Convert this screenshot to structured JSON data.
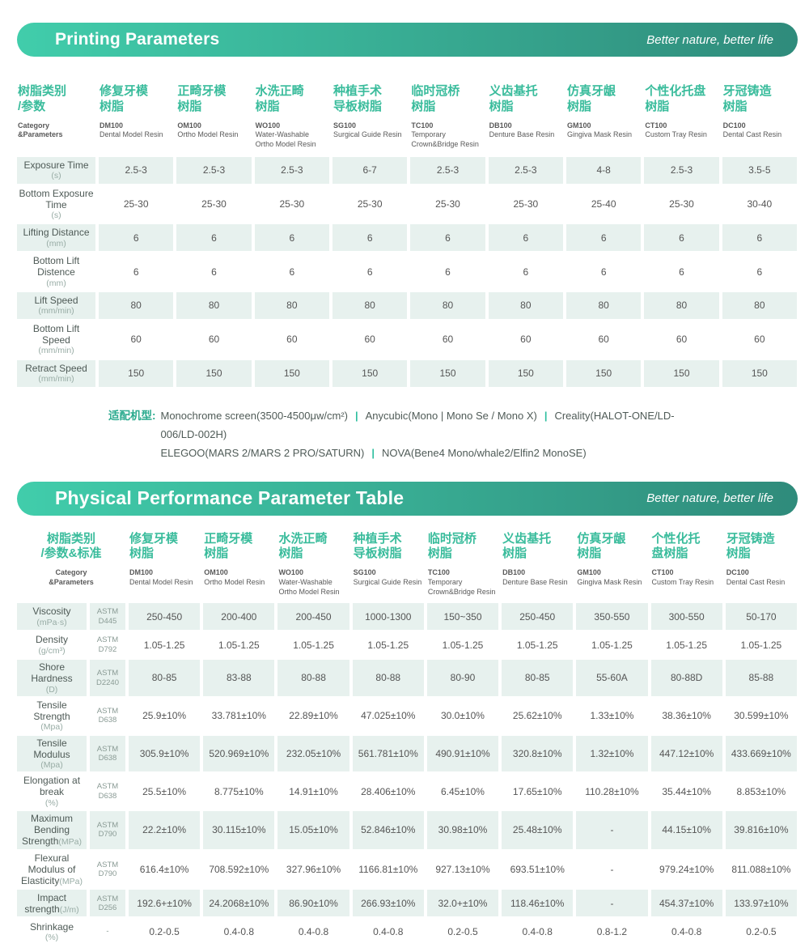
{
  "theme": {
    "accent_light": "#41cdab",
    "accent_dark": "#2f8b7b",
    "header_text": "#3abc9c",
    "shade_bg": "#e7f1ee"
  },
  "section1": {
    "title": "Printing Parameters",
    "tagline": "Better nature, better life",
    "table": {
      "category": {
        "zh": "树脂类别\n/参数",
        "en": "Category\n&Parameters"
      },
      "columns": [
        {
          "zh": "修复牙模\n树脂",
          "code": "DM100",
          "name": "Dental Model Resin"
        },
        {
          "zh": "正畸牙模\n树脂",
          "code": "OM100",
          "name": "Ortho Model Resin"
        },
        {
          "zh": "水洗正畸\n树脂",
          "code": "WO100",
          "name": "Water-Washable Ortho Model Resin"
        },
        {
          "zh": "种植手术\n导板树脂",
          "code": "SG100",
          "name": "Surgical Guide Resin"
        },
        {
          "zh": "临时冠桥\n树脂",
          "code": "TC100",
          "name": "Temporary Crown&Bridge Resin"
        },
        {
          "zh": "义齿基托\n树脂",
          "code": "DB100",
          "name": "Denture Base Resin"
        },
        {
          "zh": "仿真牙龈\n树脂",
          "code": "GM100",
          "name": "Gingiva Mask Resin"
        },
        {
          "zh": "个性化托盘\n树脂",
          "code": "CT100",
          "name": "Custom Tray Resin"
        },
        {
          "zh": "牙冠铸造\n树脂",
          "code": "DC100",
          "name": "Dental Cast Resin"
        }
      ],
      "rows": [
        {
          "label": "Exposure Time",
          "unit": "(s)",
          "values": [
            "2.5-3",
            "2.5-3",
            "2.5-3",
            "6-7",
            "2.5-3",
            "2.5-3",
            "4-8",
            "2.5-3",
            "3.5-5"
          ]
        },
        {
          "label": "Bottom Exposure Time",
          "unit": "(s)",
          "values": [
            "25-30",
            "25-30",
            "25-30",
            "25-30",
            "25-30",
            "25-30",
            "25-40",
            "25-30",
            "30-40"
          ]
        },
        {
          "label": "Lifting Distance",
          "unit": "(mm)",
          "values": [
            "6",
            "6",
            "6",
            "6",
            "6",
            "6",
            "6",
            "6",
            "6"
          ]
        },
        {
          "label": "Bottom Lift Distence",
          "unit": "(mm)",
          "values": [
            "6",
            "6",
            "6",
            "6",
            "6",
            "6",
            "6",
            "6",
            "6"
          ]
        },
        {
          "label": "Lift Speed",
          "unit": "(mm/min)",
          "values": [
            "80",
            "80",
            "80",
            "80",
            "80",
            "80",
            "80",
            "80",
            "80"
          ]
        },
        {
          "label": "Bottom Lift Speed",
          "unit": "(mm/min)",
          "values": [
            "60",
            "60",
            "60",
            "60",
            "60",
            "60",
            "60",
            "60",
            "60"
          ]
        },
        {
          "label": "Retract Speed",
          "unit": "(mm/min)",
          "values": [
            "150",
            "150",
            "150",
            "150",
            "150",
            "150",
            "150",
            "150",
            "150"
          ]
        }
      ]
    },
    "compat": {
      "label": "适配机型:",
      "sep": "|",
      "lines": [
        [
          "Monochrome screen(3500-4500μw/cm²)",
          "Anycubic(Mono | Mono Se / Mono X)",
          "Creality(HALOT-ONE/LD-"
        ],
        [
          "006/LD-002H)"
        ],
        [
          "ELEGOO(MARS 2/MARS 2 PRO/SATURN)",
          "NOVA(Bene4 Mono/whale2/Elfin2 MonoSE)"
        ]
      ]
    }
  },
  "section2": {
    "title": "Physical Performance Parameter Table",
    "tagline": "Better nature, better life",
    "table": {
      "category": {
        "zh": "树脂类别\n/参数&标准",
        "en": "Category\n&Parameters"
      },
      "columns": [
        {
          "zh": "修复牙模\n树脂",
          "code": "DM100",
          "name": "Dental Model Resin"
        },
        {
          "zh": "正畸牙模\n树脂",
          "code": "OM100",
          "name": "Ortho Model Resin"
        },
        {
          "zh": "水洗正畸\n树脂",
          "code": "WO100",
          "name": "Water-Washable Ortho Model Resin"
        },
        {
          "zh": "种植手术\n导板树脂",
          "code": "SG100",
          "name": "Surgical Guide Resin"
        },
        {
          "zh": "临时冠桥\n树脂",
          "code": "TC100",
          "name": "Temporary Crown&Bridge Resin"
        },
        {
          "zh": "义齿基托\n树脂",
          "code": "DB100",
          "name": "Denture Base Resin"
        },
        {
          "zh": "仿真牙龈\n树脂",
          "code": "GM100",
          "name": "Gingiva Mask Resin"
        },
        {
          "zh": "个性化托\n盘树脂",
          "code": "CT100",
          "name": "Custom Tray Resin"
        },
        {
          "zh": "牙冠铸造\n树脂",
          "code": "DC100",
          "name": "Dental Cast Resin"
        }
      ],
      "rows": [
        {
          "label": "Viscosity",
          "unit": "(mPa·s)",
          "std": "ASTM\nD445",
          "values": [
            "250-450",
            "200-400",
            "200-450",
            "1000-1300",
            "150~350",
            "250-450",
            "350-550",
            "300-550",
            "50-170"
          ]
        },
        {
          "label": "Density",
          "unit": "(g/cm³)",
          "std": "ASTM\nD792",
          "values": [
            "1.05-1.25",
            "1.05-1.25",
            "1.05-1.25",
            "1.05-1.25",
            "1.05-1.25",
            "1.05-1.25",
            "1.05-1.25",
            "1.05-1.25",
            "1.05-1.25"
          ]
        },
        {
          "label": "Shore Hardness",
          "unit": "(D)",
          "std": "ASTM\nD2240",
          "values": [
            "80-85",
            "83-88",
            "80-88",
            "80-88",
            "80-90",
            "80-85",
            "55-60A",
            "80-88D",
            "85-88"
          ]
        },
        {
          "label": "Tensile Strength",
          "unit": "(Mpa)",
          "std": "ASTM\nD638",
          "values": [
            "25.9±10%",
            "33.781±10%",
            "22.89±10%",
            "47.025±10%",
            "30.0±10%",
            "25.62±10%",
            "1.33±10%",
            "38.36±10%",
            "30.599±10%"
          ]
        },
        {
          "label": "Tensile Modulus",
          "unit": "(Mpa)",
          "std": "ASTM\nD638",
          "values": [
            "305.9±10%",
            "520.969±10%",
            "232.05±10%",
            "561.781±10%",
            "490.91±10%",
            "320.8±10%",
            "1.32±10%",
            "447.12±10%",
            "433.669±10%"
          ]
        },
        {
          "label": "Elongation at break",
          "unit": "(%)",
          "std": "ASTM\nD638",
          "values": [
            "25.5±10%",
            "8.775±10%",
            "14.91±10%",
            "28.406±10%",
            "6.45±10%",
            "17.65±10%",
            "110.28±10%",
            "35.44±10%",
            "8.853±10%"
          ]
        },
        {
          "label": "Maximum Bending Strength",
          "unit": "(MPa)",
          "unit_inline": true,
          "std": "ASTM\nD790",
          "values": [
            "22.2±10%",
            "30.115±10%",
            "15.05±10%",
            "52.846±10%",
            "30.98±10%",
            "25.48±10%",
            "-",
            "44.15±10%",
            "39.816±10%"
          ]
        },
        {
          "label": "Flexural Modulus of Elasticity",
          "unit": "(MPa)",
          "unit_inline": true,
          "std": "ASTM\nD790",
          "values": [
            "616.4±10%",
            "708.592±10%",
            "327.96±10%",
            "1166.81±10%",
            "927.13±10%",
            "693.51±10%",
            "-",
            "979.24±10%",
            "811.088±10%"
          ]
        },
        {
          "label": "Impact strength",
          "unit": "(J/m)",
          "unit_inline": true,
          "std": "ASTM\nD256",
          "values": [
            "192.6+±10%",
            "24.2068±10%",
            "86.90±10%",
            "266.93±10%",
            "32.0+±10%",
            "118.46±10%",
            "-",
            "454.37±10%",
            "133.97±10%"
          ]
        },
        {
          "label": "Shrinkage",
          "unit": "(%)",
          "std": "-",
          "values": [
            "0.2-0.5",
            "0.4-0.8",
            "0.4-0.8",
            "0.4-0.8",
            "0.2-0.5",
            "0.4-0.8",
            "0.8-1.2",
            "0.4-0.8",
            "0.2-0.5"
          ]
        }
      ]
    }
  }
}
